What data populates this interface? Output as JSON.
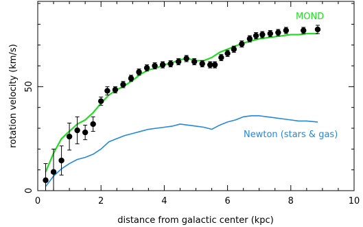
{
  "chart_data": {
    "type": "line",
    "xlabel": "distance from galactic center (kpc)",
    "ylabel": "rotation velocity (km/s)",
    "xlim": [
      0,
      10
    ],
    "ylim": [
      0,
      91
    ],
    "x_ticks": [
      0,
      2,
      4,
      6,
      8,
      10
    ],
    "x_tick_labels": [
      "0",
      "2",
      "4",
      "6",
      "8",
      "10"
    ],
    "y_ticks": [
      0,
      50
    ],
    "y_tick_labels": [
      "0",
      "50"
    ],
    "grid": false,
    "colors": {
      "observed": "#000000",
      "mond": "#22dd22",
      "newton": "#2288dd"
    },
    "series": [
      {
        "type": "scatter",
        "points": [
          {
            "x": 0.25,
            "y": 5,
            "err": 8
          },
          {
            "x": 0.5,
            "y": 9,
            "err": 11
          },
          {
            "x": 0.75,
            "y": 14.5,
            "err": 7
          },
          {
            "x": 1.0,
            "y": 26,
            "err": 6.5
          },
          {
            "x": 1.25,
            "y": 29,
            "err": 6.5
          },
          {
            "x": 1.5,
            "y": 28,
            "err": 3.5
          },
          {
            "x": 1.75,
            "y": 32,
            "err": 3.5
          },
          {
            "x": 2.0,
            "y": 43,
            "err": 2
          },
          {
            "x": 2.2,
            "y": 48,
            "err": 2
          },
          {
            "x": 2.45,
            "y": 48.5,
            "err": 1.5
          },
          {
            "x": 2.7,
            "y": 51,
            "err": 1.5
          },
          {
            "x": 2.95,
            "y": 54,
            "err": 1.5
          },
          {
            "x": 3.2,
            "y": 57,
            "err": 1.5
          },
          {
            "x": 3.45,
            "y": 59,
            "err": 1.5
          },
          {
            "x": 3.7,
            "y": 60,
            "err": 1.5
          },
          {
            "x": 3.95,
            "y": 60.5,
            "err": 1.5
          },
          {
            "x": 4.2,
            "y": 61,
            "err": 1.5
          },
          {
            "x": 4.45,
            "y": 62,
            "err": 1.5
          },
          {
            "x": 4.7,
            "y": 63.5,
            "err": 1.5
          },
          {
            "x": 4.95,
            "y": 62,
            "err": 1.5
          },
          {
            "x": 5.2,
            "y": 61,
            "err": 1.5
          },
          {
            "x": 5.45,
            "y": 60.5,
            "err": 1.5
          },
          {
            "x": 5.6,
            "y": 60.5,
            "err": 1.5
          },
          {
            "x": 5.8,
            "y": 64,
            "err": 1.5
          },
          {
            "x": 6.0,
            "y": 66,
            "err": 1.5
          },
          {
            "x": 6.2,
            "y": 68,
            "err": 1.5
          },
          {
            "x": 6.45,
            "y": 70.5,
            "err": 1.5
          },
          {
            "x": 6.7,
            "y": 73,
            "err": 1.5
          },
          {
            "x": 6.9,
            "y": 74.5,
            "err": 1.5
          },
          {
            "x": 7.1,
            "y": 75,
            "err": 1.5
          },
          {
            "x": 7.35,
            "y": 75.5,
            "err": 1.5
          },
          {
            "x": 7.6,
            "y": 76,
            "err": 1.5
          },
          {
            "x": 7.85,
            "y": 77,
            "err": 1.5
          },
          {
            "x": 8.4,
            "y": 77,
            "err": 1.5
          },
          {
            "x": 8.85,
            "y": 77.5,
            "err": 2
          }
        ]
      },
      {
        "name": "MOND",
        "type": "line",
        "x": [
          0.25,
          0.5,
          0.75,
          1.0,
          1.25,
          1.5,
          1.75,
          2.0,
          2.25,
          2.5,
          2.75,
          3.0,
          3.25,
          3.5,
          3.75,
          4.0,
          4.25,
          4.5,
          4.75,
          5.0,
          5.25,
          5.5,
          5.75,
          6.0,
          6.25,
          6.5,
          6.75,
          7.0,
          7.25,
          7.5,
          7.75,
          8.0,
          8.25,
          8.5,
          8.85
        ],
        "values": [
          9,
          18,
          25,
          28.5,
          32,
          34,
          37.5,
          42,
          46,
          48.5,
          50.5,
          53,
          56,
          58,
          59,
          60.5,
          61.5,
          63,
          63.5,
          62.5,
          62.5,
          64,
          66.5,
          68,
          69.5,
          71,
          72,
          73,
          73.5,
          74,
          74.5,
          75,
          75,
          75.5,
          75.5
        ]
      },
      {
        "name": "Newton (stars & gas)",
        "type": "line",
        "x": [
          0.25,
          0.5,
          0.75,
          1.0,
          1.25,
          1.5,
          1.75,
          2.0,
          2.25,
          2.5,
          2.75,
          3.0,
          3.25,
          3.5,
          3.75,
          4.0,
          4.25,
          4.5,
          4.75,
          5.0,
          5.25,
          5.5,
          5.75,
          6.0,
          6.25,
          6.5,
          6.75,
          7.0,
          7.25,
          7.5,
          7.75,
          8.0,
          8.25,
          8.5,
          8.85
        ],
        "values": [
          2,
          7,
          10.5,
          13,
          15,
          16,
          17.5,
          20,
          23.5,
          25,
          26.5,
          27.5,
          28.5,
          29.5,
          30,
          30.5,
          31,
          32,
          31.5,
          31,
          30.5,
          29.5,
          31.5,
          33,
          34,
          35.5,
          36,
          36,
          35.5,
          35,
          34.5,
          34,
          33.5,
          33.5,
          33
        ]
      }
    ]
  }
}
